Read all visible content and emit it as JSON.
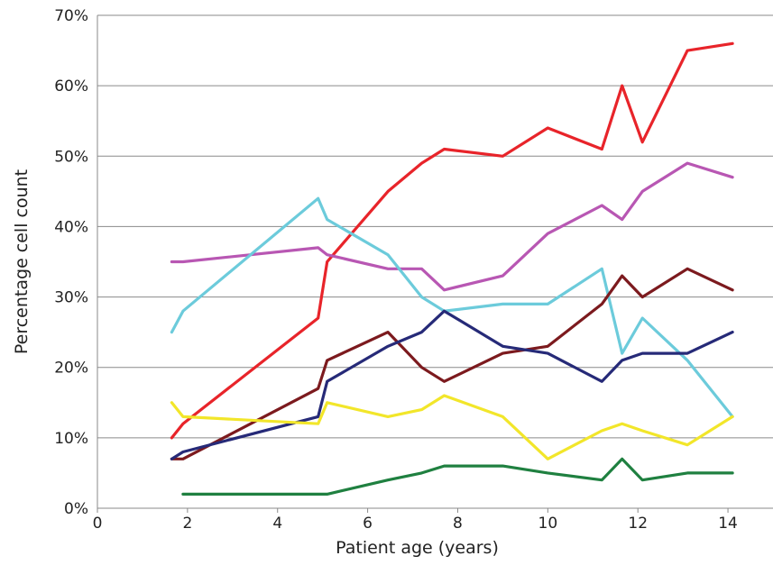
{
  "chart_data": {
    "type": "line",
    "title": "",
    "xlabel": "Patient age (years)",
    "ylabel": "Percentage cell count",
    "xlim": [
      0,
      15
    ],
    "ylim": [
      0,
      70
    ],
    "x_ticks": [
      0,
      2,
      4,
      6,
      8,
      10,
      12,
      14
    ],
    "y_ticks": [
      0,
      10,
      20,
      30,
      40,
      50,
      60,
      70
    ],
    "y_tick_labels": [
      "0%",
      "10%",
      "20%",
      "30%",
      "40%",
      "50%",
      "60%",
      "70%"
    ],
    "grid": "horizontal",
    "legend": "none",
    "series": [
      {
        "color": "#e8242a",
        "points": [
          [
            1.65,
            10
          ],
          [
            1.9,
            12
          ],
          [
            4.9,
            27
          ],
          [
            5.1,
            35
          ],
          [
            6.45,
            45
          ],
          [
            7.2,
            49
          ],
          [
            7.7,
            51
          ],
          [
            9.0,
            50
          ],
          [
            10.0,
            54
          ],
          [
            11.2,
            51
          ],
          [
            11.65,
            60
          ],
          [
            12.1,
            52
          ],
          [
            13.1,
            65
          ],
          [
            14.1,
            66
          ]
        ]
      },
      {
        "color": "#b857b3",
        "points": [
          [
            1.65,
            35
          ],
          [
            1.9,
            35
          ],
          [
            4.9,
            37
          ],
          [
            5.1,
            36
          ],
          [
            6.45,
            34
          ],
          [
            7.2,
            34
          ],
          [
            7.7,
            31
          ],
          [
            9.0,
            33
          ],
          [
            10.0,
            39
          ],
          [
            11.2,
            43
          ],
          [
            11.65,
            41
          ],
          [
            12.1,
            45
          ],
          [
            13.1,
            49
          ],
          [
            14.1,
            47
          ]
        ]
      },
      {
        "color": "#6ccbdb",
        "points": [
          [
            1.65,
            25
          ],
          [
            1.9,
            28
          ],
          [
            4.9,
            44
          ],
          [
            5.1,
            41
          ],
          [
            6.45,
            36
          ],
          [
            7.2,
            30
          ],
          [
            7.7,
            28
          ],
          [
            9.0,
            29
          ],
          [
            10.0,
            29
          ],
          [
            11.2,
            34
          ],
          [
            11.65,
            22
          ],
          [
            12.1,
            27
          ],
          [
            13.1,
            21
          ],
          [
            14.1,
            13
          ]
        ]
      },
      {
        "color": "#7c1a1e",
        "points": [
          [
            1.65,
            7
          ],
          [
            1.9,
            7
          ],
          [
            4.9,
            17
          ],
          [
            5.1,
            21
          ],
          [
            6.45,
            25
          ],
          [
            7.2,
            20
          ],
          [
            7.7,
            18
          ],
          [
            9.0,
            22
          ],
          [
            10.0,
            23
          ],
          [
            11.2,
            29
          ],
          [
            11.65,
            33
          ],
          [
            12.1,
            30
          ],
          [
            13.1,
            34
          ],
          [
            14.1,
            31
          ]
        ]
      },
      {
        "color": "#262a78",
        "points": [
          [
            1.65,
            7
          ],
          [
            1.9,
            8
          ],
          [
            4.9,
            13
          ],
          [
            5.1,
            18
          ],
          [
            6.45,
            23
          ],
          [
            7.2,
            25
          ],
          [
            7.7,
            28
          ],
          [
            9.0,
            23
          ],
          [
            10.0,
            22
          ],
          [
            11.2,
            18
          ],
          [
            11.65,
            21
          ],
          [
            12.1,
            22
          ],
          [
            13.1,
            22
          ],
          [
            14.1,
            25
          ]
        ]
      },
      {
        "color": "#f2e62a",
        "points": [
          [
            1.65,
            15
          ],
          [
            1.9,
            13
          ],
          [
            4.9,
            12
          ],
          [
            5.1,
            15
          ],
          [
            6.45,
            13
          ],
          [
            7.2,
            14
          ],
          [
            7.7,
            16
          ],
          [
            9.0,
            13
          ],
          [
            10.0,
            7
          ],
          [
            11.2,
            11
          ],
          [
            11.65,
            12
          ],
          [
            12.1,
            11
          ],
          [
            13.1,
            9
          ],
          [
            14.1,
            13
          ]
        ]
      },
      {
        "color": "#1f8040",
        "points": [
          [
            1.9,
            2
          ],
          [
            4.9,
            2
          ],
          [
            5.1,
            2
          ],
          [
            6.45,
            4
          ],
          [
            7.2,
            5
          ],
          [
            7.7,
            6
          ],
          [
            9.0,
            6
          ],
          [
            10.0,
            5
          ],
          [
            11.2,
            4
          ],
          [
            11.65,
            7
          ],
          [
            12.1,
            4
          ],
          [
            13.1,
            5
          ],
          [
            14.1,
            5
          ]
        ]
      }
    ]
  }
}
